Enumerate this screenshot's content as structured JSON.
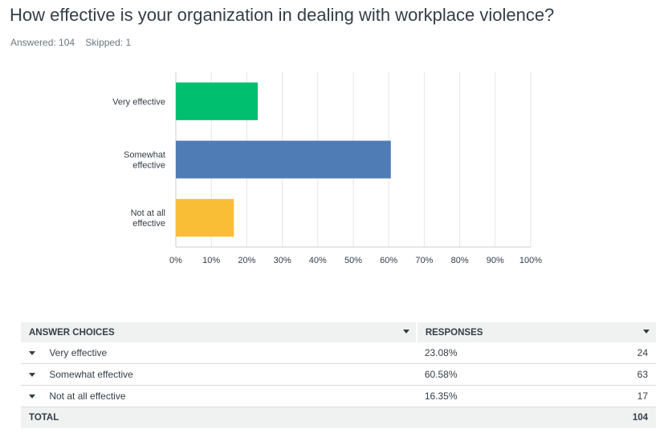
{
  "question": {
    "title": "How effective is your organization in dealing with workplace violence?",
    "answered_label": "Answered: 104",
    "skipped_label": "Skipped: 1"
  },
  "chart_data": {
    "type": "bar",
    "orientation": "horizontal",
    "categories": [
      "Very effective",
      "Somewhat effective",
      "Not at all effective"
    ],
    "category_lines": [
      [
        "Very effective"
      ],
      [
        "Somewhat",
        "effective"
      ],
      [
        "Not at all",
        "effective"
      ]
    ],
    "values": [
      23.08,
      60.58,
      16.35
    ],
    "colors": [
      "#00bf6f",
      "#507cb6",
      "#f9be35"
    ],
    "xticks": [
      "0%",
      "10%",
      "20%",
      "30%",
      "40%",
      "50%",
      "60%",
      "70%",
      "80%",
      "90%",
      "100%"
    ],
    "xlim": [
      0,
      100
    ],
    "grid": true
  },
  "table": {
    "headers": [
      "ANSWER CHOICES",
      "RESPONSES"
    ],
    "rows": [
      {
        "choice": "Very effective",
        "percent": "23.08%",
        "count": "24"
      },
      {
        "choice": "Somewhat effective",
        "percent": "60.58%",
        "count": "63"
      },
      {
        "choice": "Not at all effective",
        "percent": "16.35%",
        "count": "17"
      }
    ],
    "total_label": "TOTAL",
    "total_count": "104"
  }
}
